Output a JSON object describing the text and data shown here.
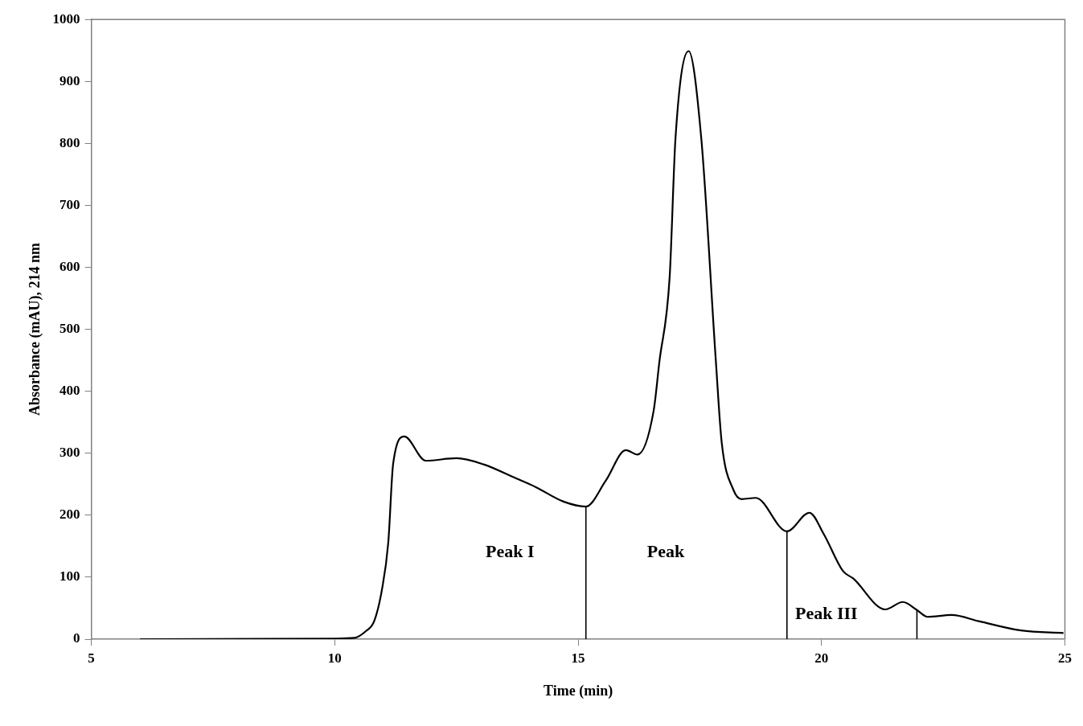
{
  "chart_data": {
    "type": "line",
    "xlabel": "Time (min)",
    "ylabel": "Absorbance (mAU), 214 nm",
    "x": [
      6.0,
      9.99,
      10.4,
      10.64,
      10.81,
      10.97,
      11.1,
      11.2,
      11.43,
      11.87,
      12.5,
      13.06,
      13.71,
      14.14,
      14.7,
      15.16,
      15.57,
      15.98,
      16.22,
      16.55,
      16.67,
      16.88,
      17.0,
      17.27,
      17.53,
      17.83,
      17.95,
      18.19,
      18.36,
      18.65,
      19.29,
      19.75,
      20.05,
      20.44,
      20.65,
      21.31,
      21.67,
      21.96,
      22.18,
      22.67,
      23.23,
      24.1,
      24.97
    ],
    "series": [
      {
        "color": "#000000",
        "values": [
          0,
          1,
          2,
          13,
          29,
          80,
          156,
          283,
          327,
          288,
          292,
          282,
          260,
          245,
          222,
          214,
          256,
          305,
          298,
          368,
          448,
          584,
          808,
          949,
          808,
          448,
          317,
          241,
          226,
          228,
          174,
          204,
          169,
          110,
          98,
          48,
          60,
          47,
          36,
          39,
          29,
          14,
          10
        ]
      },
      {
        "type": "line",
        "color": "#000000",
        "x": [
          21.96,
          21.96
        ],
        "values": [
          0,
          47
        ]
      }
    ],
    "xlim": [
      5,
      25
    ],
    "xticks": [
      5,
      10,
      15,
      20,
      25
    ],
    "ylim": [
      0,
      1000
    ],
    "yticks": [
      0,
      100,
      200,
      300,
      400,
      500,
      600,
      700,
      800,
      900,
      1000
    ],
    "grid": false,
    "legend": false,
    "marker": "none",
    "line_style": "solid",
    "ref_lines": [
      {
        "axis": "x",
        "value": 15.16,
        "color": "#000000"
      },
      {
        "axis": "x",
        "value": 19.29,
        "color": "#000000"
      }
    ],
    "annotations": [
      "Peak I",
      "Peak",
      "Peak III"
    ]
  }
}
